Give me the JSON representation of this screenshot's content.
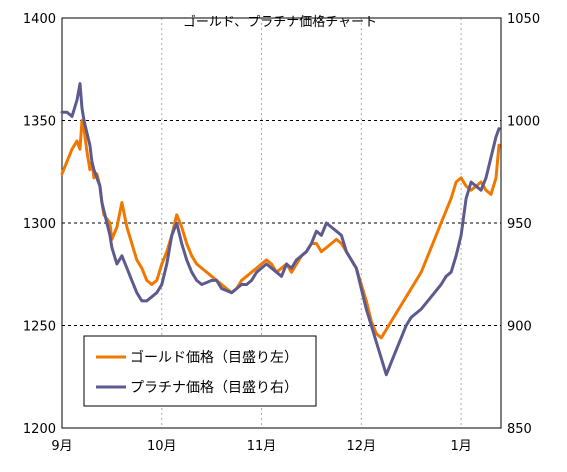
{
  "chart_data": {
    "type": "line",
    "title": "ゴールド、プラチナ価格チャート",
    "x_ticks": [
      "9月",
      "10月",
      "11月",
      "12月",
      "1月"
    ],
    "y_left": {
      "min": 1200,
      "max": 1400,
      "ticks": [
        "1200",
        "1250",
        "1300",
        "1350",
        "1400"
      ]
    },
    "y_right": {
      "min": 850,
      "max": 1050,
      "ticks": [
        "850",
        "900",
        "950",
        "1000",
        "1050"
      ]
    },
    "grid": {
      "vertical": "dotted",
      "horizontal": "dashed"
    },
    "legend_position": "bottom-left",
    "x_range": [
      0,
      4.4
    ],
    "series": [
      {
        "name": "ゴールド価格（目盛り左）",
        "axis": "left",
        "color": "#f07800",
        "x": [
          0,
          0.05,
          0.1,
          0.15,
          0.18,
          0.2,
          0.22,
          0.25,
          0.28,
          0.3,
          0.32,
          0.35,
          0.38,
          0.4,
          0.42,
          0.45,
          0.48,
          0.5,
          0.55,
          0.6,
          0.65,
          0.7,
          0.75,
          0.8,
          0.85,
          0.9,
          0.95,
          1.0,
          1.05,
          1.1,
          1.15,
          1.2,
          1.25,
          1.3,
          1.35,
          1.4,
          1.45,
          1.5,
          1.55,
          1.6,
          1.65,
          1.7,
          1.75,
          1.8,
          1.85,
          1.9,
          1.95,
          2.0,
          2.05,
          2.1,
          2.15,
          2.2,
          2.25,
          2.3,
          2.35,
          2.4,
          2.45,
          2.5,
          2.55,
          2.6,
          2.65,
          2.7,
          2.75,
          2.8,
          2.85,
          2.9,
          2.95,
          3.0,
          3.05,
          3.1,
          3.15,
          3.2,
          3.25,
          3.3,
          3.35,
          3.4,
          3.45,
          3.5,
          3.6,
          3.7,
          3.8,
          3.85,
          3.9,
          3.95,
          4.0,
          4.05,
          4.1,
          4.15,
          4.2,
          4.25,
          4.3,
          4.35,
          4.38
        ],
        "values": [
          1324,
          1330,
          1336,
          1340,
          1336,
          1350,
          1346,
          1335,
          1326,
          1330,
          1322,
          1324,
          1318,
          1310,
          1304,
          1302,
          1300,
          1292,
          1298,
          1310,
          1298,
          1290,
          1282,
          1278,
          1272,
          1270,
          1272,
          1280,
          1286,
          1294,
          1304,
          1298,
          1290,
          1284,
          1280,
          1278,
          1276,
          1274,
          1272,
          1270,
          1268,
          1266,
          1268,
          1272,
          1274,
          1276,
          1278,
          1280,
          1282,
          1280,
          1276,
          1278,
          1280,
          1276,
          1280,
          1284,
          1286,
          1290,
          1290,
          1286,
          1288,
          1290,
          1292,
          1290,
          1286,
          1282,
          1278,
          1270,
          1262,
          1252,
          1246,
          1244,
          1248,
          1252,
          1256,
          1260,
          1264,
          1268,
          1276,
          1288,
          1300,
          1306,
          1312,
          1320,
          1322,
          1318,
          1316,
          1318,
          1320,
          1316,
          1314,
          1322,
          1338
        ]
      },
      {
        "name": "プラチナ価格（目盛り右）",
        "axis": "right",
        "color": "#5c5a8e",
        "x": [
          0,
          0.05,
          0.1,
          0.15,
          0.18,
          0.2,
          0.22,
          0.25,
          0.28,
          0.3,
          0.32,
          0.35,
          0.38,
          0.4,
          0.42,
          0.45,
          0.48,
          0.5,
          0.55,
          0.6,
          0.65,
          0.7,
          0.75,
          0.8,
          0.85,
          0.9,
          0.95,
          1.0,
          1.05,
          1.1,
          1.15,
          1.2,
          1.25,
          1.3,
          1.35,
          1.4,
          1.45,
          1.5,
          1.55,
          1.6,
          1.65,
          1.7,
          1.75,
          1.8,
          1.85,
          1.9,
          1.95,
          2.0,
          2.05,
          2.1,
          2.15,
          2.2,
          2.25,
          2.3,
          2.35,
          2.4,
          2.45,
          2.5,
          2.55,
          2.6,
          2.65,
          2.7,
          2.75,
          2.8,
          2.85,
          2.9,
          2.95,
          3.0,
          3.05,
          3.1,
          3.15,
          3.2,
          3.25,
          3.3,
          3.35,
          3.4,
          3.45,
          3.5,
          3.6,
          3.7,
          3.8,
          3.85,
          3.9,
          3.95,
          4.0,
          4.05,
          4.1,
          4.15,
          4.2,
          4.25,
          4.3,
          4.35,
          4.38
        ],
        "values": [
          1004,
          1004,
          1002,
          1010,
          1018,
          1006,
          1000,
          994,
          988,
          980,
          976,
          972,
          968,
          960,
          956,
          950,
          944,
          938,
          930,
          934,
          928,
          922,
          916,
          912,
          912,
          914,
          916,
          920,
          930,
          944,
          950,
          940,
          932,
          926,
          922,
          920,
          921,
          922,
          922,
          918,
          917,
          916,
          918,
          920,
          920,
          922,
          926,
          928,
          930,
          928,
          926,
          924,
          930,
          928,
          932,
          934,
          936,
          940,
          946,
          944,
          950,
          948,
          946,
          944,
          936,
          932,
          928,
          918,
          908,
          900,
          892,
          884,
          876,
          882,
          888,
          894,
          900,
          904,
          908,
          914,
          920,
          924,
          926,
          934,
          944,
          962,
          970,
          968,
          966,
          972,
          982,
          992,
          996
        ]
      }
    ]
  }
}
